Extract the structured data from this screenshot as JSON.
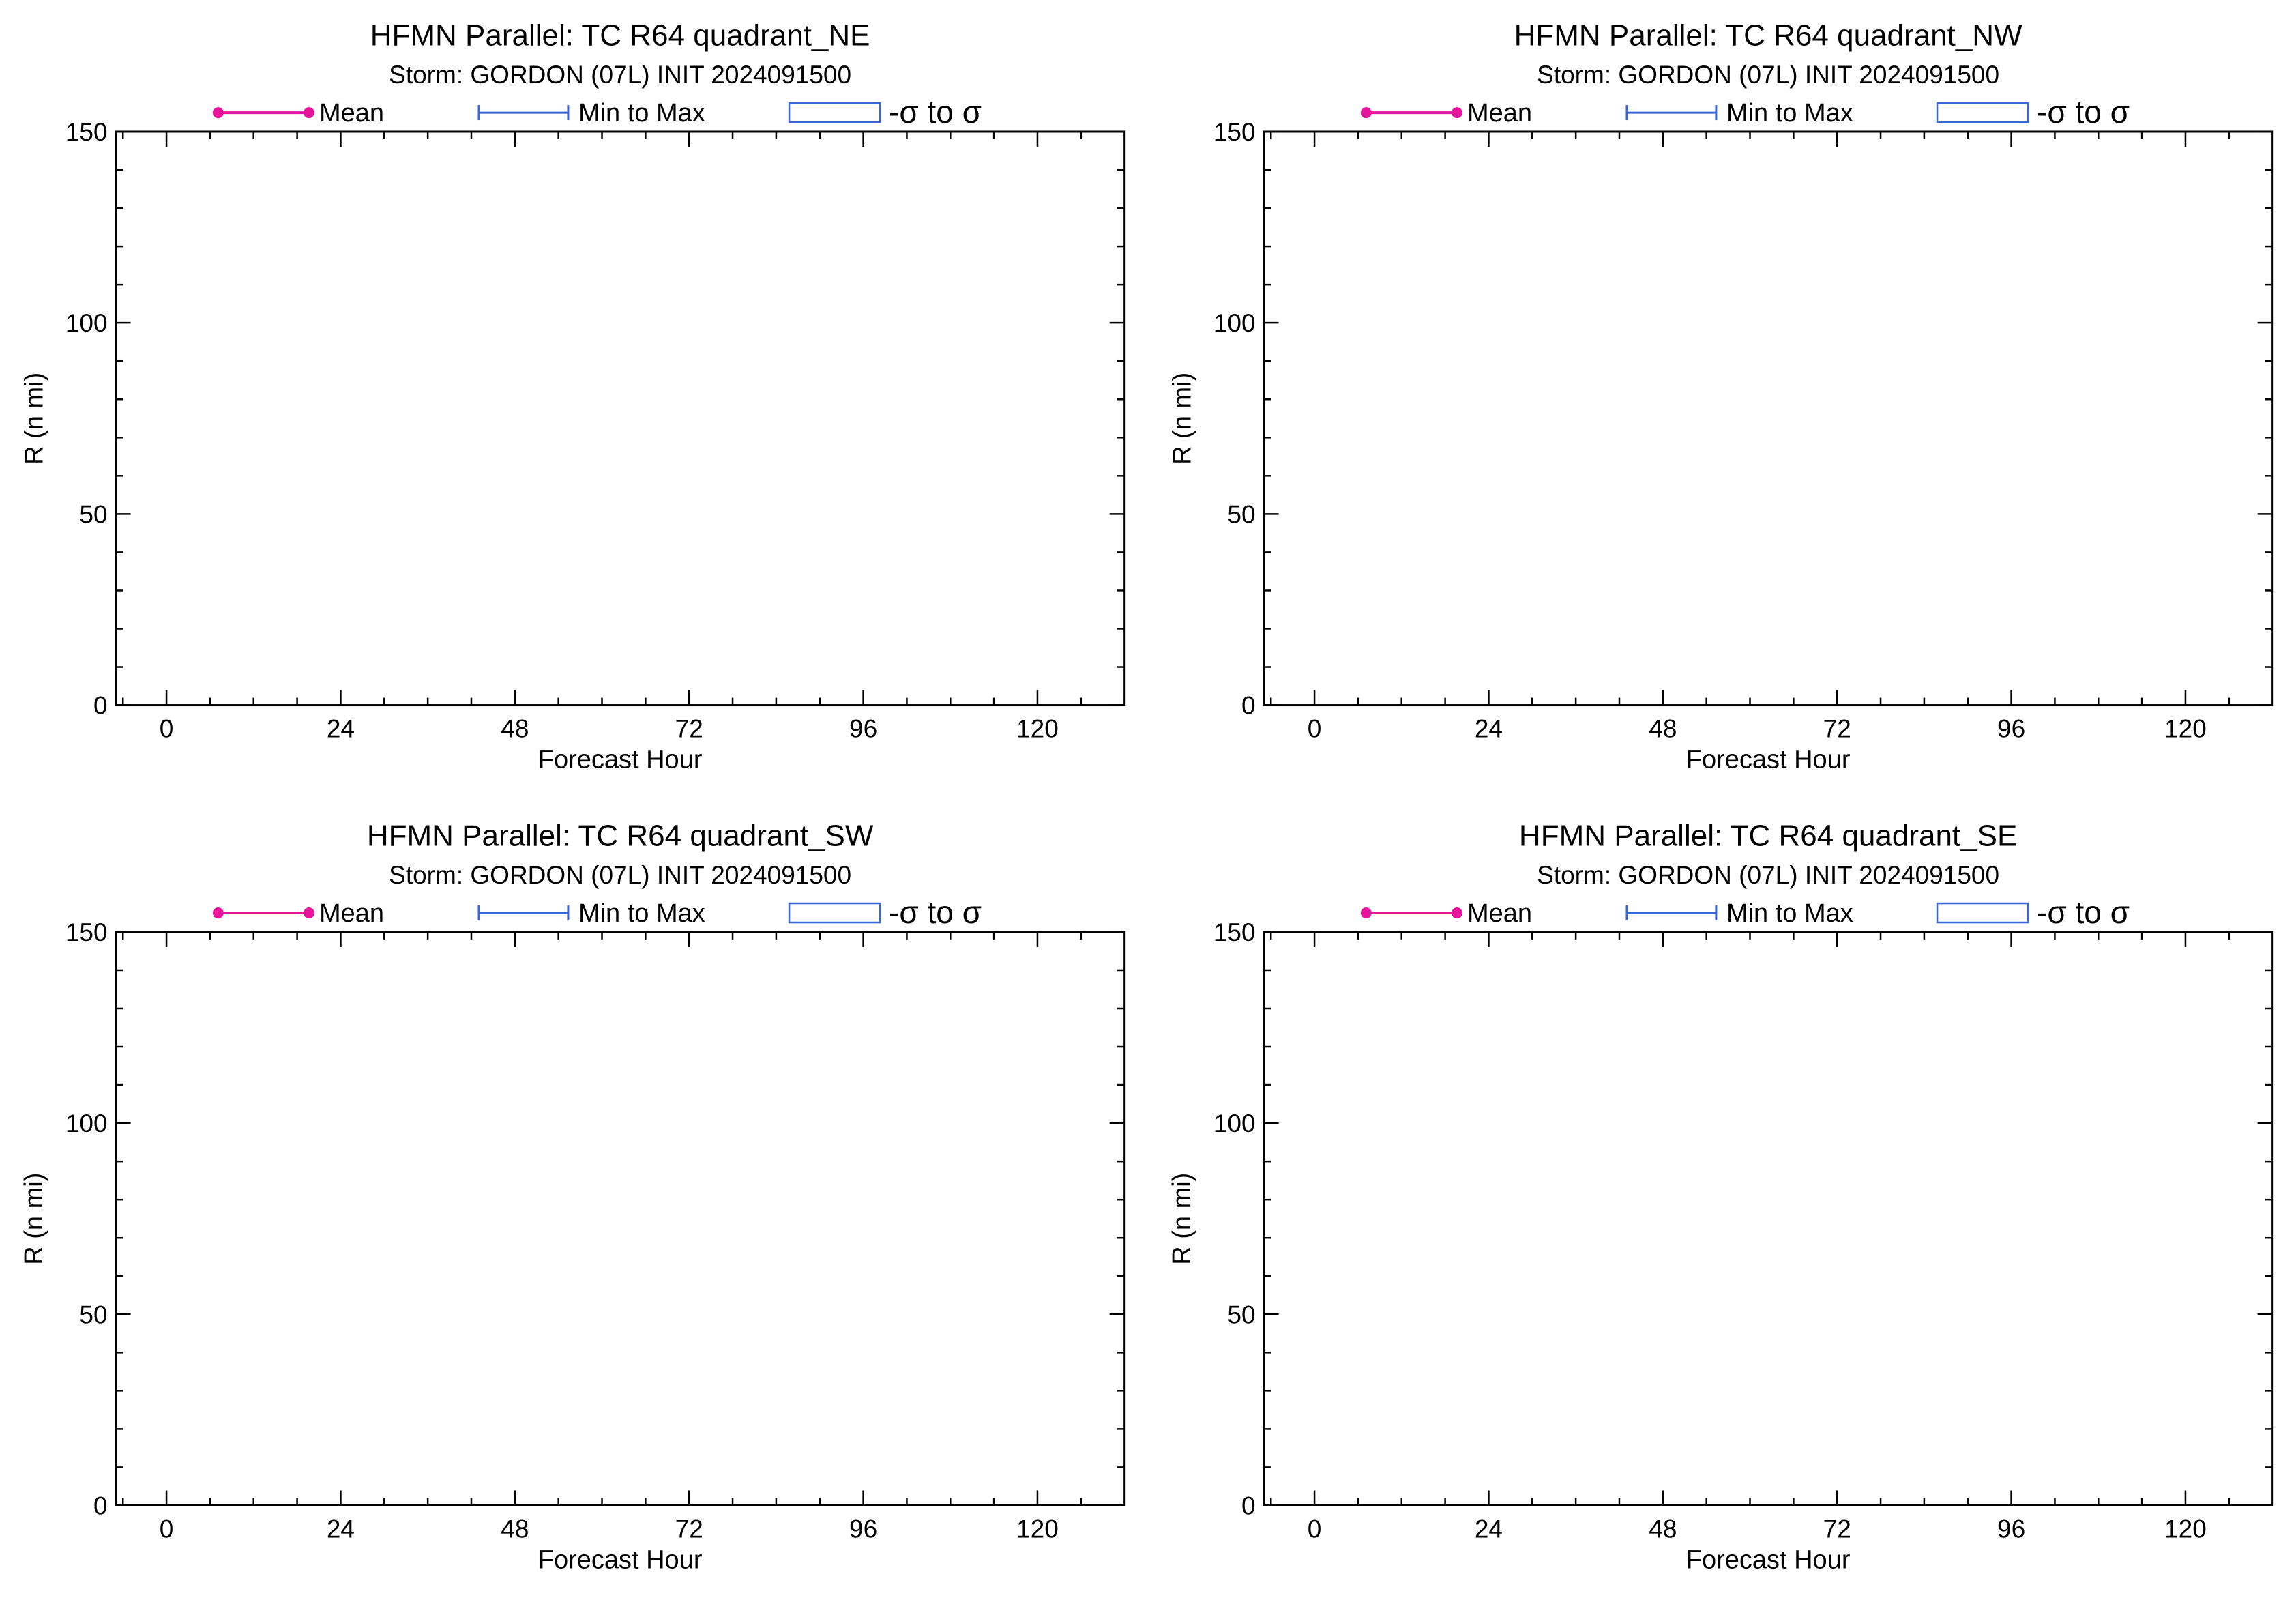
{
  "chart_data": [
    {
      "type": "line",
      "title": "HFMN Parallel: TC  R64 quadrant_NE",
      "subtitle": "Storm: GORDON (07L) INIT 2024091500",
      "xlabel": "Forecast Hour",
      "ylabel": "R (n mi)",
      "xlim": [
        -7,
        132
      ],
      "ylim": [
        0,
        150
      ],
      "xticks": [
        0,
        24,
        48,
        72,
        96,
        120
      ],
      "yticks": [
        0,
        50,
        100,
        150
      ],
      "grid": false,
      "legend_position": "top",
      "legend": [
        {
          "label": "Mean",
          "kind": "line-dots",
          "color": "#e6149a"
        },
        {
          "label": "Min to Max",
          "kind": "range-bar",
          "color": "#3a66d8"
        },
        {
          "label": "-σ to σ",
          "kind": "box",
          "color": "#3a66d8"
        }
      ],
      "series": []
    },
    {
      "type": "line",
      "title": "HFMN Parallel: TC  R64 quadrant_NW",
      "subtitle": "Storm: GORDON (07L) INIT 2024091500",
      "xlabel": "Forecast Hour",
      "ylabel": "R (n mi)",
      "xlim": [
        -7,
        132
      ],
      "ylim": [
        0,
        150
      ],
      "xticks": [
        0,
        24,
        48,
        72,
        96,
        120
      ],
      "yticks": [
        0,
        50,
        100,
        150
      ],
      "grid": false,
      "legend_position": "top",
      "legend": [
        {
          "label": "Mean",
          "kind": "line-dots",
          "color": "#e6149a"
        },
        {
          "label": "Min to Max",
          "kind": "range-bar",
          "color": "#3a66d8"
        },
        {
          "label": "-σ to σ",
          "kind": "box",
          "color": "#3a66d8"
        }
      ],
      "series": []
    },
    {
      "type": "line",
      "title": "HFMN Parallel: TC  R64 quadrant_SW",
      "subtitle": "Storm: GORDON (07L) INIT 2024091500",
      "xlabel": "Forecast Hour",
      "ylabel": "R (n mi)",
      "xlim": [
        -7,
        132
      ],
      "ylim": [
        0,
        150
      ],
      "xticks": [
        0,
        24,
        48,
        72,
        96,
        120
      ],
      "yticks": [
        0,
        50,
        100,
        150
      ],
      "grid": false,
      "legend_position": "top",
      "legend": [
        {
          "label": "Mean",
          "kind": "line-dots",
          "color": "#e6149a"
        },
        {
          "label": "Min to Max",
          "kind": "range-bar",
          "color": "#3a66d8"
        },
        {
          "label": "-σ to σ",
          "kind": "box",
          "color": "#3a66d8"
        }
      ],
      "series": []
    },
    {
      "type": "line",
      "title": "HFMN Parallel: TC  R64 quadrant_SE",
      "subtitle": "Storm: GORDON (07L) INIT 2024091500",
      "xlabel": "Forecast Hour",
      "ylabel": "R (n mi)",
      "xlim": [
        -7,
        132
      ],
      "ylim": [
        0,
        150
      ],
      "xticks": [
        0,
        24,
        48,
        72,
        96,
        120
      ],
      "yticks": [
        0,
        50,
        100,
        150
      ],
      "grid": false,
      "legend_position": "top",
      "legend": [
        {
          "label": "Mean",
          "kind": "line-dots",
          "color": "#e6149a"
        },
        {
          "label": "Min to Max",
          "kind": "range-bar",
          "color": "#3a66d8"
        },
        {
          "label": "-σ to σ",
          "kind": "box",
          "color": "#3a66d8"
        }
      ],
      "series": []
    }
  ]
}
